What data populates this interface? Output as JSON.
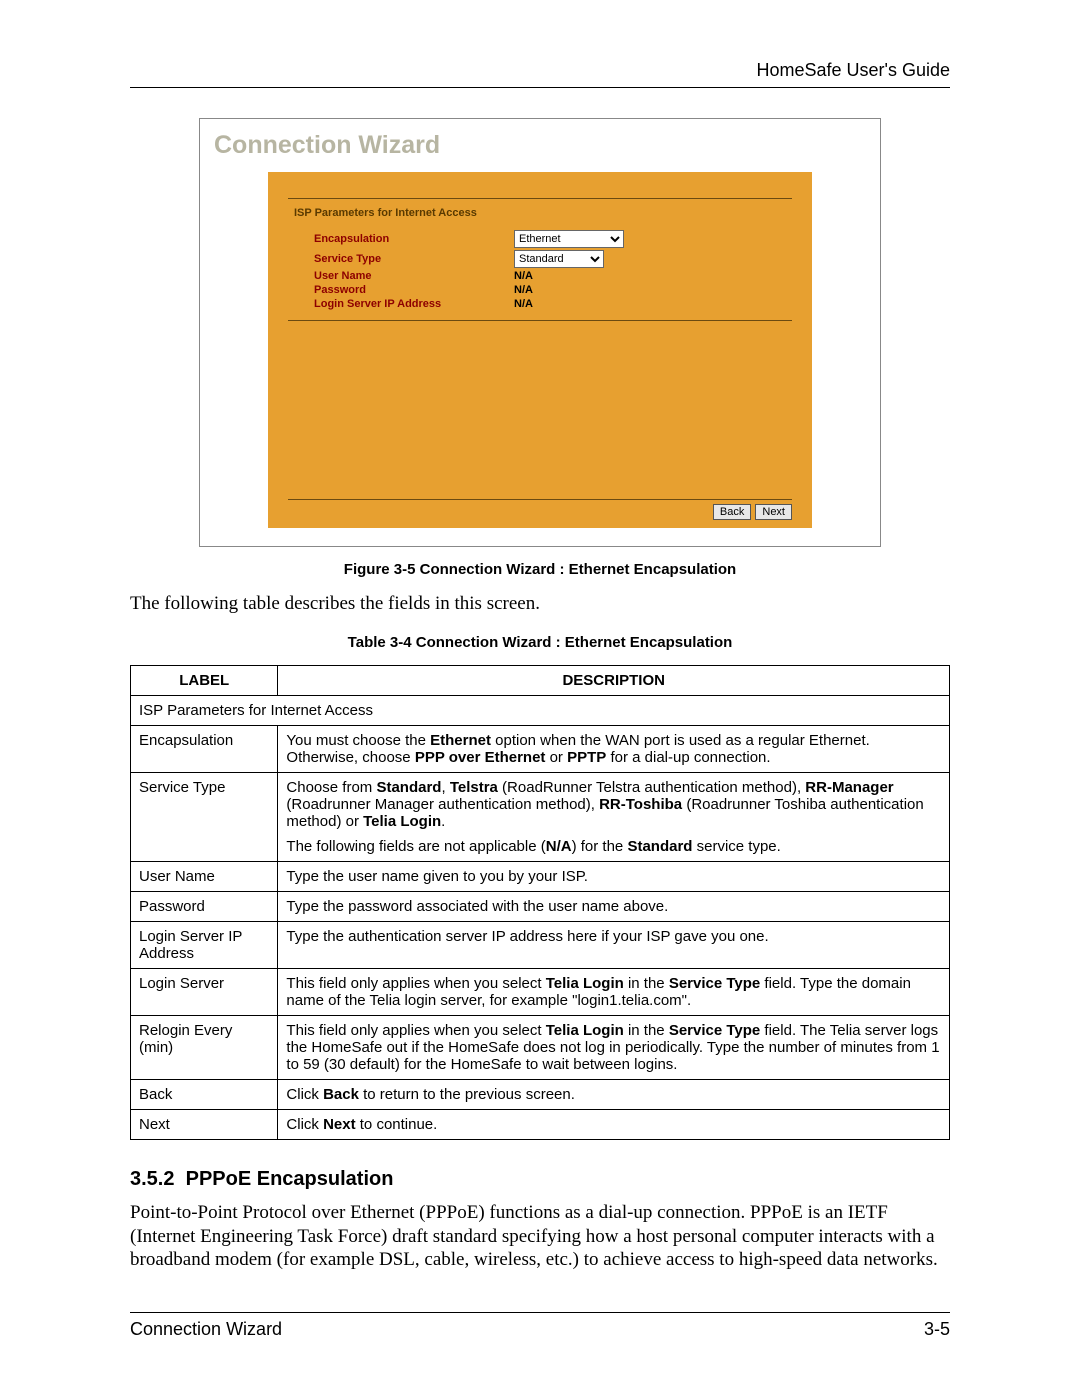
{
  "header": {
    "title": "HomeSafe User's Guide"
  },
  "wizard": {
    "title": "Connection Wizard",
    "section_title": "ISP Parameters for Internet Access",
    "background_color": "#e7a030",
    "title_color": "#b7b5a2",
    "label_color": "#8d0000",
    "rows": [
      {
        "label": "Encapsulation",
        "type": "select",
        "value": "Ethernet"
      },
      {
        "label": "Service Type",
        "type": "select",
        "value": "Standard"
      },
      {
        "label": "User Name",
        "type": "text",
        "value": "N/A"
      },
      {
        "label": "Password",
        "type": "text",
        "value": "N/A"
      },
      {
        "label": "Login Server IP Address",
        "type": "text",
        "value": "N/A"
      }
    ],
    "buttons": {
      "back": "Back",
      "next": "Next"
    }
  },
  "figure_caption": "Figure 3-5 Connection Wizard : Ethernet Encapsulation",
  "intro_para": "The following table describes the fields in this screen.",
  "table_caption": "Table 3-4 Connection Wizard : Ethernet Encapsulation",
  "table": {
    "columns": [
      "LABEL",
      "DESCRIPTION"
    ],
    "column_widths": [
      "18%",
      "82%"
    ],
    "span_row": "ISP Parameters for Internet Access",
    "rows": [
      {
        "label": "Encapsulation",
        "desc_html": "You must choose the <b>Ethernet</b> option when the WAN port is used as a regular Ethernet. Otherwise, choose <b>PPP over Ethernet</b> or <b>PPTP</b> for a dial-up connection."
      },
      {
        "label": "Service Type",
        "desc_html": "<p class='table-para'>Choose from <b>Standard</b>, <b>Telstra</b> (RoadRunner Telstra authentication method), <b>RR-Manager</b> (Roadrunner Manager authentication method), <b>RR-Toshiba</b> (Roadrunner Toshiba authentication method) or <b>Telia Login</b>.</p><p class='table-para'>The following fields are not applicable (<b>N/A</b>) for the <b>Standard</b> service type.</p>"
      },
      {
        "label": "User Name",
        "desc_html": "Type the user name given to you by your ISP."
      },
      {
        "label": "Password",
        "desc_html": "Type the password associated with the user name above."
      },
      {
        "label": "Login Server IP Address",
        "desc_html": "Type the authentication server IP address here if your ISP gave you one."
      },
      {
        "label": "Login Server",
        "desc_html": "This field only applies when you select <b>Telia Login</b> in the <b>Service Type</b> field. Type the domain name of the Telia login server, for example \"login1.telia.com\"."
      },
      {
        "label": "Relogin Every (min)",
        "desc_html": "This field only applies when you select <b>Telia Login</b> in the <b>Service Type</b> field. The Telia server logs the HomeSafe out if the HomeSafe does not log in periodically. Type the number of minutes from 1 to 59 (30 default) for the HomeSafe to wait between logins."
      },
      {
        "label": "Back",
        "desc_html": "Click <b>Back</b> to return to the previous screen."
      },
      {
        "label": "Next",
        "desc_html": "Click <b>Next</b> to continue."
      }
    ]
  },
  "section": {
    "number": "3.5.2",
    "title": "PPPoE Encapsulation",
    "para": "Point-to-Point Protocol over Ethernet (PPPoE) functions as a dial-up connection. PPPoE is an IETF (Internet Engineering Task Force) draft standard specifying how a host personal computer interacts with a broadband modem (for example DSL, cable, wireless, etc.) to achieve access to high-speed data networks."
  },
  "footer": {
    "left": "Connection Wizard",
    "right": "3-5"
  }
}
